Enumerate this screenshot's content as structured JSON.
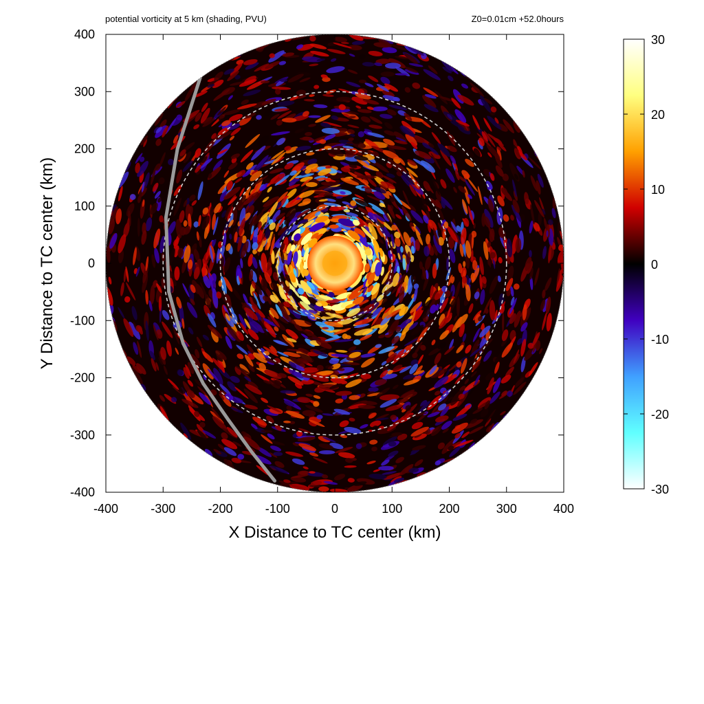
{
  "header": {
    "title": "potential vorticity at 5 km (shading, PVU)",
    "subtitle": "Z0=0.01cm  +52.0hours"
  },
  "chart_data": {
    "type": "heatmap",
    "title": "potential vorticity at 5 km (shading, PVU)",
    "subtitle": "Z0=0.01cm  +52.0hours",
    "xlabel": "X Distance to TC center (km)",
    "ylabel": "Y Distance to TC center (km)",
    "xlim": [
      -400,
      400
    ],
    "ylim": [
      -400,
      400
    ],
    "x_ticks": [
      -400,
      -300,
      -200,
      -100,
      0,
      100,
      200,
      300,
      400
    ],
    "y_ticks": [
      -400,
      -300,
      -200,
      -100,
      0,
      100,
      200,
      300,
      400
    ],
    "domain_radius_km": 400,
    "reference_circles_km": [
      100,
      200,
      300
    ],
    "eye_pv": 20,
    "colorbar": {
      "min": -30,
      "max": 30,
      "ticks": [
        30,
        20,
        10,
        0,
        -10,
        -20,
        -30
      ],
      "colors": [
        "#ffffff",
        "#ffff80",
        "#ffa000",
        "#d00000",
        "#000000",
        "#4000c0",
        "#40a0ff",
        "#60ffff",
        "#ffffff"
      ]
    },
    "track_line": {
      "points": [
        [
          -235,
          325
        ],
        [
          -275,
          200
        ],
        [
          -295,
          80
        ],
        [
          -290,
          -50
        ],
        [
          -265,
          -140
        ],
        [
          -230,
          -210
        ],
        [
          -185,
          -275
        ],
        [
          -145,
          -330
        ],
        [
          -105,
          -380
        ]
      ],
      "color": "#9a9a9a"
    },
    "grid": false
  }
}
